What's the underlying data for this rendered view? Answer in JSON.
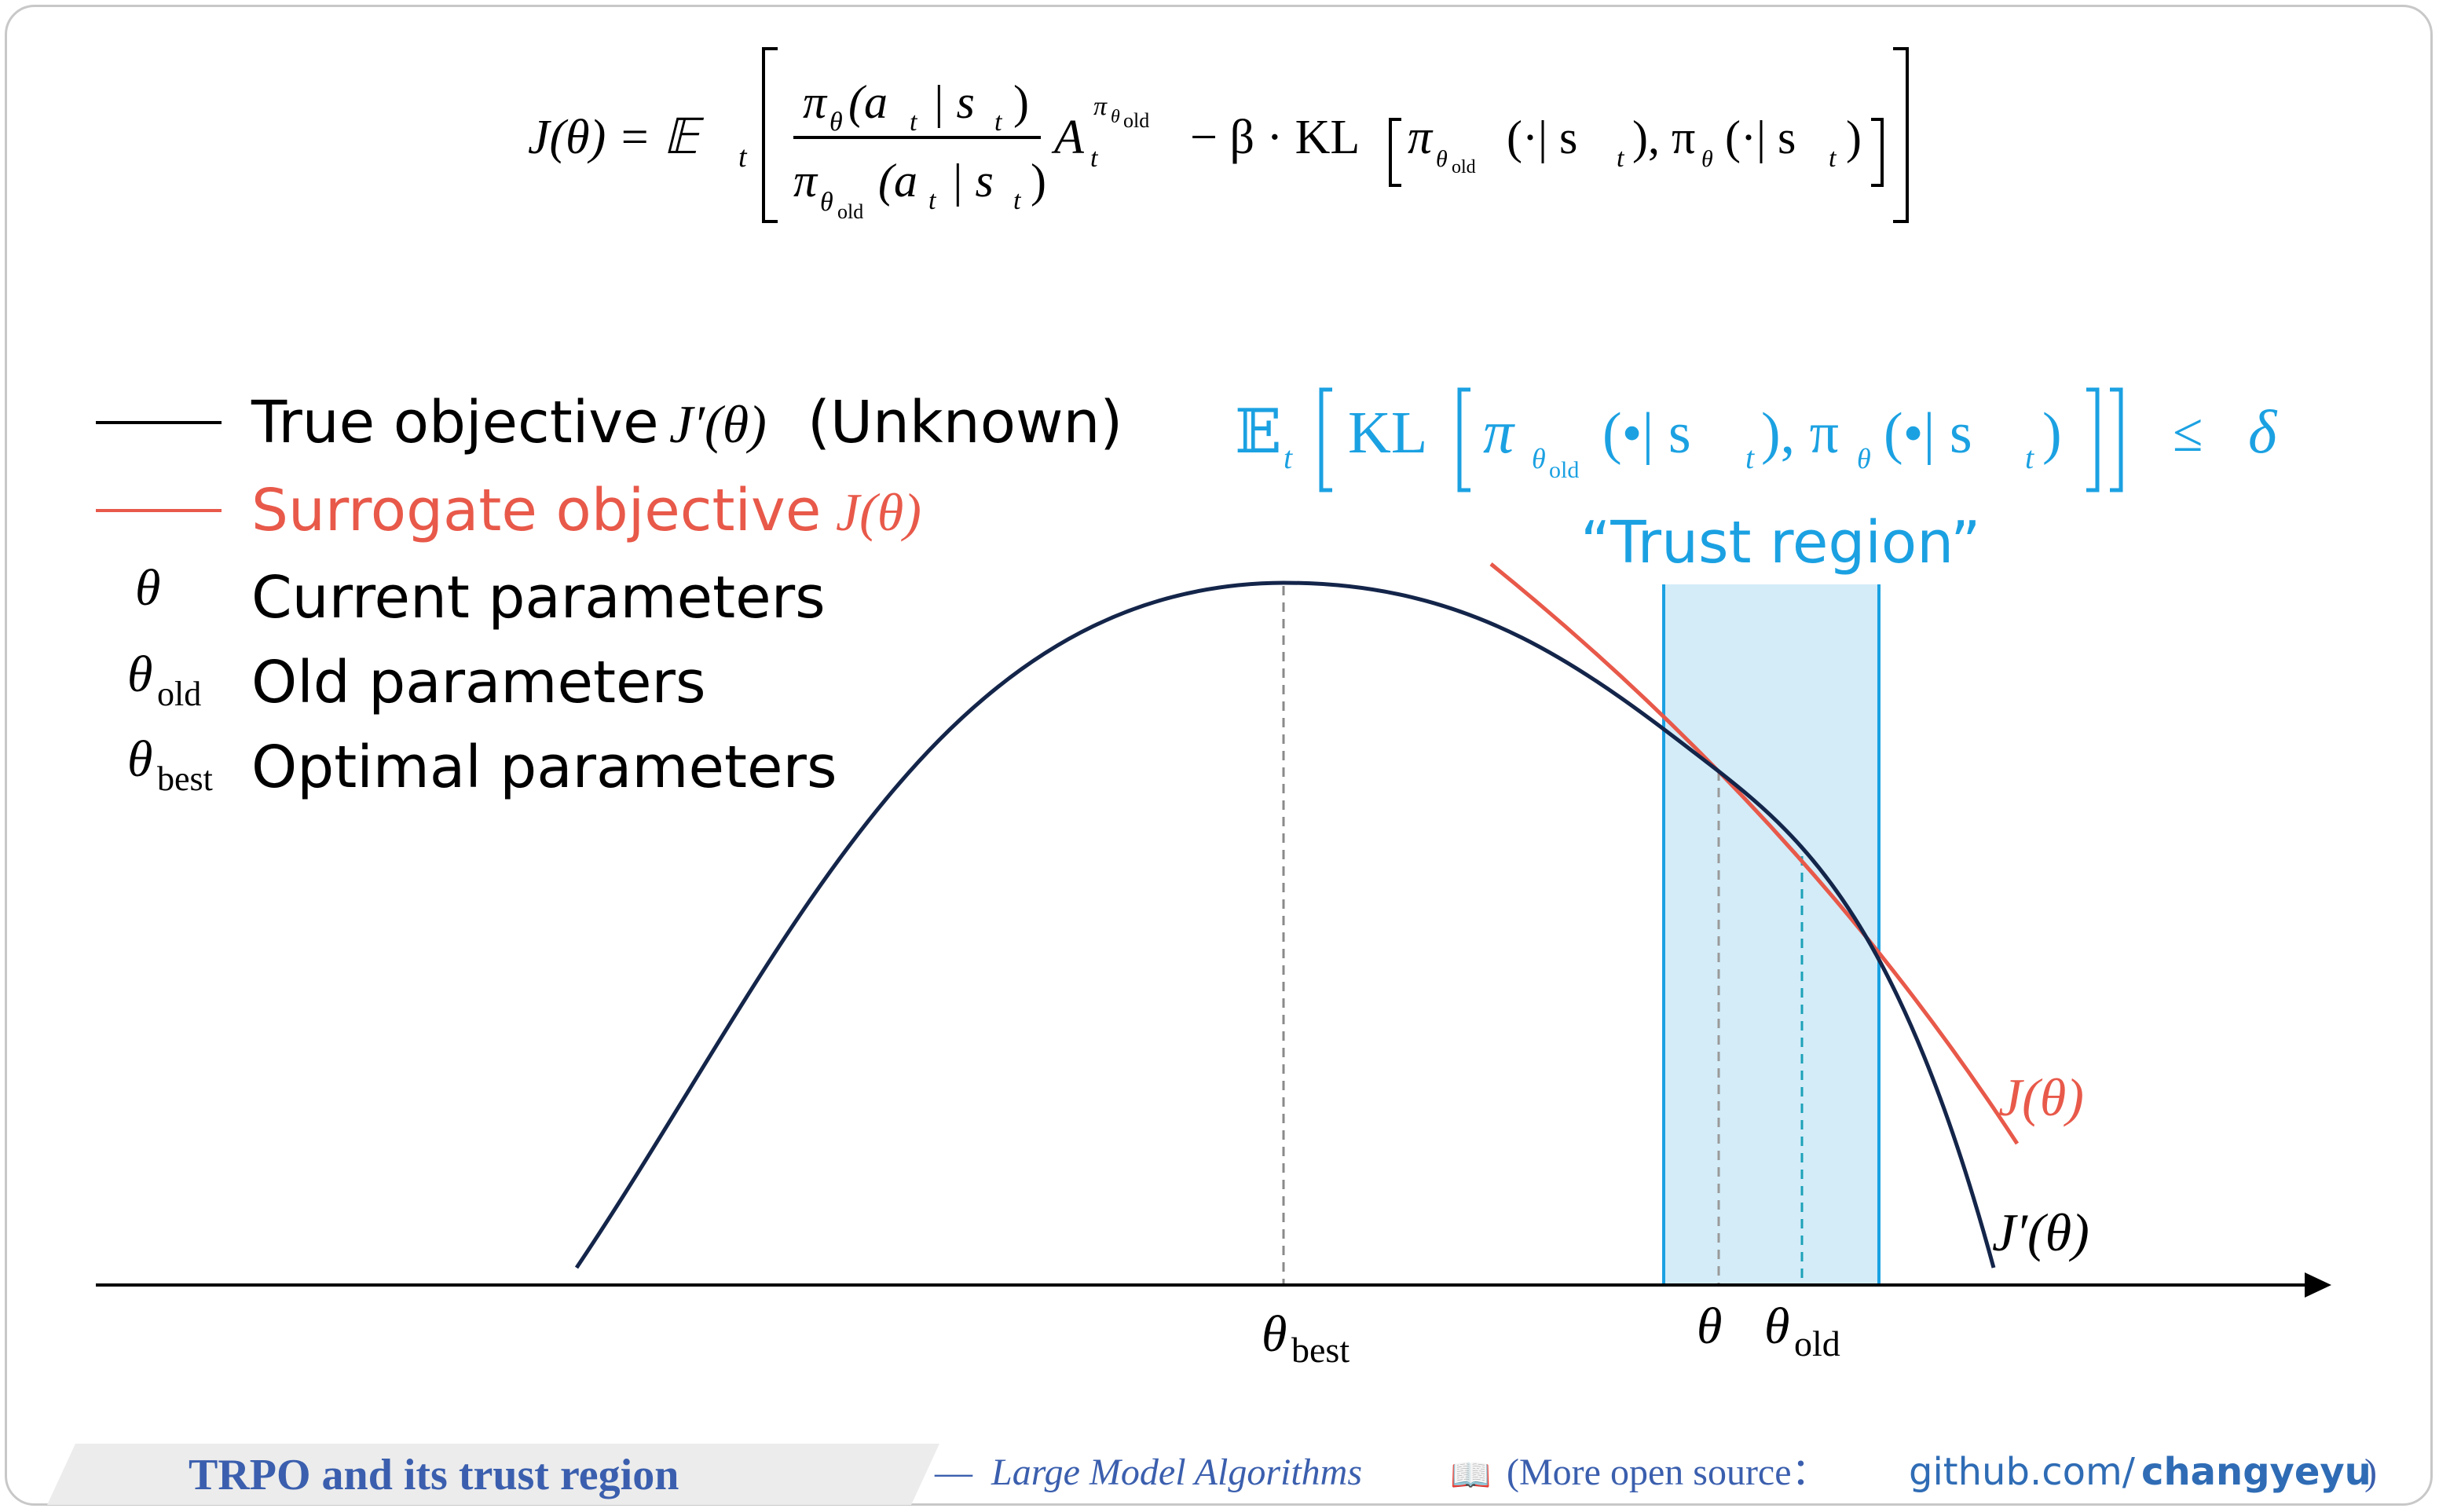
{
  "formula": {
    "lhs": "J(θ) = 𝔼",
    "sub_t": "t",
    "ratio_numerator": "π",
    "num_sub": "θ",
    "num_args": "(a",
    "num_args_t": "t",
    "num_bar": "| s",
    "num_close": ")",
    "ratio_denominator": "π",
    "den_sub": "θ",
    "den_sub_old": "old",
    "den_args": "(a",
    "den_args_t": "t",
    "den_bar": "| s",
    "den_close": ")",
    "adv": "A",
    "adv_sup": "π",
    "adv_sup_sub": "θ",
    "adv_sup_sub_old": "old",
    "adv_sub": "t",
    "penalty": "− β · KL",
    "kl_pi1": "π",
    "kl_pi1_sub": "θ",
    "kl_pi1_sub_old": "old",
    "kl_args1": "(·| s",
    "kl_args1_t": "t",
    "kl_sep": "), π",
    "kl_pi2_sub": "θ",
    "kl_args2": "(·| s",
    "kl_args2_t": "t",
    "kl_close": ")"
  },
  "legend": {
    "items": [
      {
        "label": "True objective",
        "math": "J′(θ)",
        "suffix": "(Unknown)",
        "color": "#000000"
      },
      {
        "label": "Surrogate objective",
        "math": "J(θ)",
        "color": "#e8594a"
      },
      {
        "symbol": "θ",
        "label": "Current parameters"
      },
      {
        "symbol": "θ",
        "symbol_sub": "old",
        "label": "Old parameters"
      },
      {
        "symbol": "θ",
        "symbol_sub": "best",
        "label": "Optimal parameters"
      }
    ]
  },
  "constraint": {
    "e": "𝔼",
    "e_sub": "t",
    "kl": "KL",
    "pi1": "π",
    "pi1_sub": "θ",
    "pi1_sub_old": "old",
    "args1": "(•| s",
    "args1_t": "t",
    "sep": "), π",
    "pi2_sub": "θ",
    "args2": "(•| s",
    "args2_t": "t",
    "close": ")",
    "leq": "≤",
    "delta": "δ",
    "color": "#1ba1e2"
  },
  "trust_region_label": "“Trust region”",
  "curve_labels": {
    "surrogate": "J(θ)",
    "true": "J′(θ)"
  },
  "axis_labels": {
    "theta_best": "θ",
    "theta_best_sub": "best",
    "theta": "θ",
    "theta_old": "θ",
    "theta_old_sub": "old"
  },
  "footer": {
    "title": "TRPO and its trust region",
    "dash": "—",
    "book": "Large Model Algorithms",
    "book_icon": "📖",
    "more": "(More open source：",
    "url_prefix": "github.com/",
    "url_user": "changyeyu",
    "close": ")"
  },
  "colors": {
    "true_curve": "#14254a",
    "surrogate_curve": "#e8594a",
    "trust_fill": "#d3ecf8",
    "trust_border": "#1ba1e2",
    "title_blue": "#3b5fae",
    "link_blue": "#2f6cb5"
  }
}
